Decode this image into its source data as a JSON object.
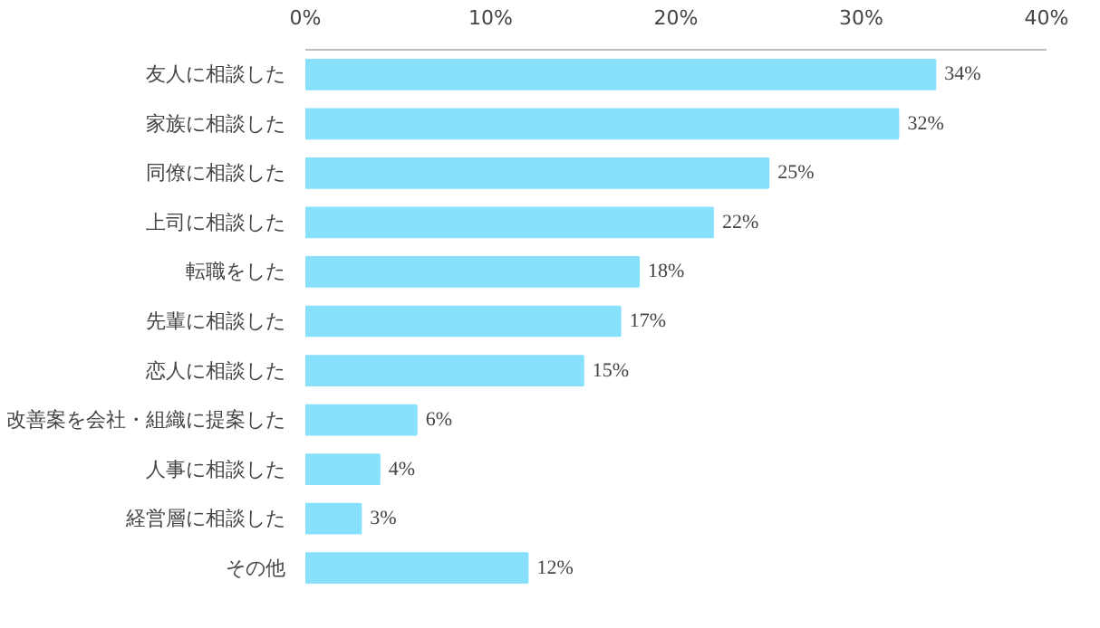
{
  "chart_data": {
    "type": "bar",
    "orientation": "horizontal",
    "categories": [
      "友人に相談した",
      "家族に相談した",
      "同僚に相談した",
      "上司に相談した",
      "転職をした",
      "先輩に相談した",
      "恋人に相談した",
      "改善案を会社・組織に提案した",
      "人事に相談した",
      "経営層に相談した",
      "その他"
    ],
    "values": [
      34,
      32,
      25,
      22,
      18,
      17,
      15,
      6,
      4,
      3,
      12
    ],
    "value_labels": [
      "34%",
      "32%",
      "25%",
      "22%",
      "18%",
      "17%",
      "15%",
      "6%",
      "4%",
      "3%",
      "12%"
    ],
    "color": "#87e1fd",
    "xlim": [
      0,
      40
    ],
    "xticks": [
      {
        "value": 0,
        "label": "0%"
      },
      {
        "value": 10,
        "label": "10%"
      },
      {
        "value": 20,
        "label": "20%"
      },
      {
        "value": 30,
        "label": "30%"
      },
      {
        "value": 40,
        "label": "40%"
      }
    ],
    "grid": false
  }
}
